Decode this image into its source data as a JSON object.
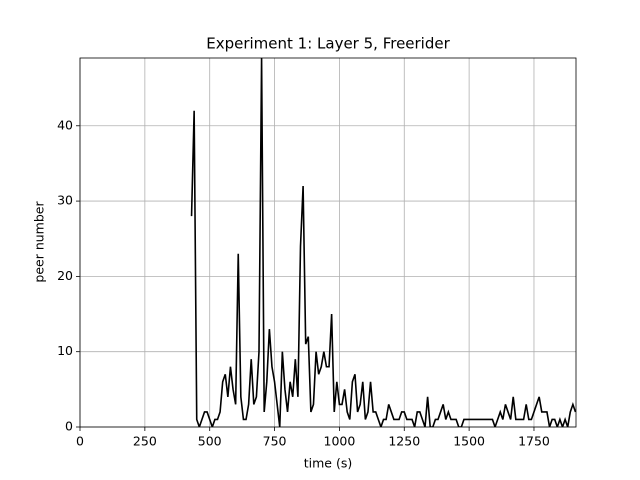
{
  "chart_data": {
    "type": "line",
    "title": "Experiment 1: Layer 5, Freerider",
    "x_label": "time (s)",
    "y_label": "peer number",
    "x": [
      430,
      440,
      450,
      460,
      470,
      480,
      490,
      500,
      510,
      520,
      530,
      540,
      550,
      560,
      570,
      580,
      590,
      600,
      610,
      620,
      630,
      640,
      650,
      660,
      670,
      680,
      690,
      700,
      710,
      720,
      730,
      740,
      750,
      760,
      770,
      780,
      790,
      800,
      810,
      820,
      830,
      840,
      850,
      860,
      870,
      880,
      890,
      900,
      910,
      920,
      930,
      940,
      950,
      960,
      970,
      980,
      990,
      1000,
      1010,
      1020,
      1030,
      1040,
      1050,
      1060,
      1070,
      1080,
      1090,
      1100,
      1110,
      1120,
      1130,
      1140,
      1150,
      1160,
      1170,
      1180,
      1190,
      1200,
      1210,
      1220,
      1230,
      1240,
      1250,
      1260,
      1270,
      1280,
      1290,
      1300,
      1310,
      1320,
      1330,
      1340,
      1350,
      1360,
      1370,
      1380,
      1390,
      1400,
      1410,
      1420,
      1430,
      1440,
      1450,
      1460,
      1470,
      1480,
      1490,
      1500,
      1510,
      1520,
      1530,
      1540,
      1550,
      1560,
      1570,
      1580,
      1590,
      1600,
      1610,
      1620,
      1630,
      1640,
      1650,
      1660,
      1670,
      1680,
      1690,
      1700,
      1710,
      1720,
      1730,
      1740,
      1750,
      1760,
      1770,
      1780,
      1790,
      1800,
      1810,
      1820,
      1830,
      1840,
      1850,
      1860,
      1870,
      1880,
      1890,
      1900,
      1910
    ],
    "series": [
      {
        "color": "#000000",
        "values": [
          28,
          42,
          1,
          0,
          1,
          2,
          2,
          1,
          0,
          1,
          1,
          2,
          6,
          7,
          4,
          8,
          5,
          3,
          23,
          4,
          1,
          1,
          3,
          9,
          3,
          4,
          10,
          49,
          2,
          6,
          13,
          8,
          6,
          3,
          0,
          10,
          5,
          2,
          6,
          4,
          9,
          4,
          24,
          32,
          11,
          12,
          2,
          3,
          10,
          7,
          8,
          10,
          8,
          8,
          15,
          2,
          6,
          3,
          3,
          5,
          2,
          1,
          6,
          7,
          2,
          3,
          6,
          1,
          2,
          6,
          2,
          2,
          1,
          0,
          1,
          1,
          3,
          2,
          1,
          1,
          1,
          2,
          2,
          1,
          1,
          1,
          0,
          2,
          2,
          1,
          0,
          4,
          0,
          0,
          1,
          1,
          2,
          3,
          1,
          2,
          1,
          1,
          1,
          0,
          0,
          1,
          1,
          1,
          1,
          1,
          1,
          1,
          1,
          1,
          1,
          1,
          1,
          0,
          1,
          2,
          1,
          3,
          2,
          1,
          4,
          1,
          1,
          1,
          1,
          3,
          1,
          1,
          2,
          3,
          4,
          2,
          2,
          2,
          0,
          1,
          1,
          0,
          1,
          0,
          1,
          0,
          2,
          3,
          2
        ]
      }
    ],
    "xlim": [
      0,
      1912
    ],
    "ylim": [
      0,
      49
    ],
    "xticks": [
      0,
      250,
      500,
      750,
      1000,
      1250,
      1500,
      1750
    ],
    "yticks": [
      0,
      10,
      20,
      30,
      40
    ],
    "grid": true
  }
}
